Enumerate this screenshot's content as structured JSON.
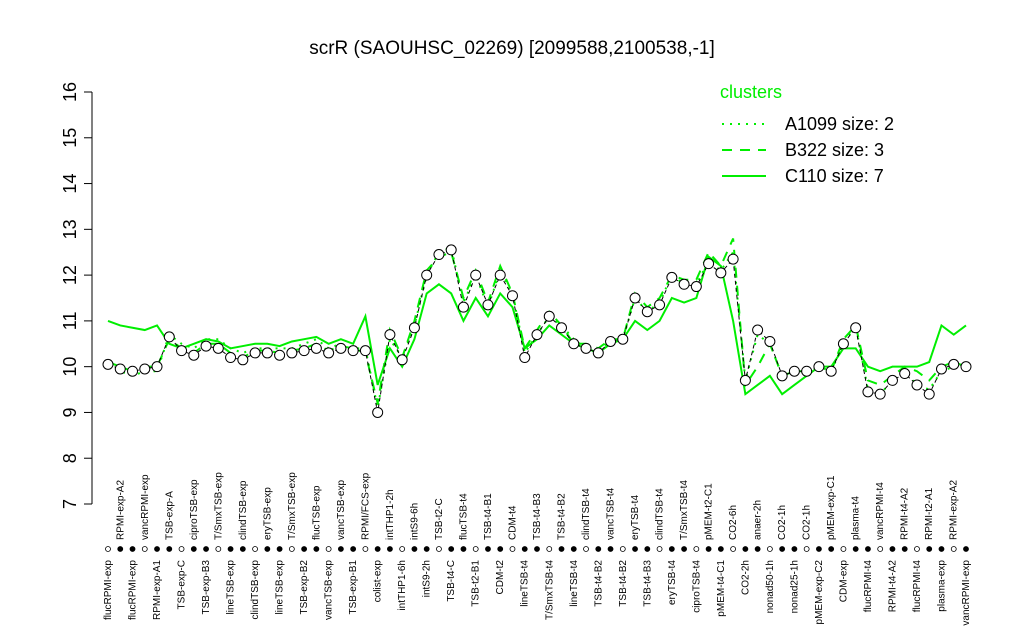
{
  "chart_data": {
    "type": "line",
    "title": "scrR (SAOUHSC_02269) [2099588,2100538,-1]",
    "categories": [
      "flucRPMI-exp",
      "RPMI-exp-A2",
      "flucRPMI-exp",
      "vancRPMI-exp",
      "RPMI-exp-A1",
      "TSB-exp-A",
      "TSB-exp-C",
      "ciproTSB-exp",
      "TSB-exp-B3",
      "T/SmxTSB-exp",
      "lineTSB-exp",
      "clindTSB-exp",
      "clindTSB-exp",
      "eryTSB-exp",
      "lineTSB-exp",
      "T/SmxTSB-exp",
      "TSB-exp-B2",
      "flucTSB-exp",
      "vancTSB-exp",
      "vancTSB-exp",
      "TSB-exp-B1",
      "RPMI/FCS-exp",
      "colist-exp",
      "intTHP1-2h",
      "intTHP1-6h",
      "intS9-6h",
      "intS9-2h",
      "TSB-t2-C",
      "TSB-t4-C",
      "flucTSB-t4",
      "TSB-t2-B1",
      "TSB-t4-B1",
      "CDM-t2",
      "CDM-t4",
      "lineTSB-t4",
      "TSB-t4-B3",
      "T/SmxTSB-t4",
      "TSB-t4-B2",
      "lineTSB-t4",
      "clindTSB-t4",
      "TSB-t4-B2",
      "vancTSB-t4",
      "TSB-t4-B2",
      "eryTSB-t4",
      "TSB-t4-B3",
      "clindTSB-t4",
      "eryTSB-t4",
      "T/SmxTSB-t4",
      "ciproTSB-t4",
      "pMEM-t2-C1",
      "pMEM-t4-C1",
      "CO2-6h",
      "CO2-2h",
      "anaer-2h",
      "nonad50-1h",
      "CO2-1h",
      "nonad25-1h",
      "CO2-1h",
      "pMEM-exp-C2",
      "pMEM-exp-C1",
      "CDM-exp",
      "plasma-t4",
      "flucRPMI-t4",
      "vancRPMI-t4",
      "RPMI-t4-A2",
      "RPMI-t4-A2",
      "flucRPMI-t4",
      "RPMI-t2-A1",
      "plasma-exp",
      "RPMI-exp-A2",
      "vancRPMI-exp"
    ],
    "values": [
      10.05,
      9.95,
      9.9,
      9.95,
      10.0,
      10.65,
      10.35,
      10.25,
      10.45,
      10.4,
      10.2,
      10.15,
      10.3,
      10.3,
      10.25,
      10.3,
      10.35,
      10.4,
      10.3,
      10.4,
      10.35,
      10.35,
      9.0,
      10.7,
      10.15,
      10.85,
      12.0,
      12.45,
      12.55,
      11.3,
      12.0,
      11.35,
      12.0,
      11.55,
      10.2,
      10.7,
      11.1,
      10.85,
      10.5,
      10.4,
      10.3,
      10.55,
      10.6,
      11.5,
      11.2,
      11.35,
      11.95,
      11.8,
      11.75,
      12.25,
      12.05,
      12.35,
      9.7,
      10.8,
      10.55,
      9.8,
      9.9,
      9.9,
      10.0,
      9.9,
      10.5,
      10.85,
      9.45,
      9.4,
      9.7,
      9.85,
      9.6,
      9.4,
      9.95,
      10.05,
      10.0
    ],
    "color": "#000000",
    "legend_title": "clusters",
    "series": [
      {
        "name": "A1099 size: 2",
        "color": "#00ee00",
        "dash": "dotted",
        "values": [
          10.0,
          9.9,
          9.8,
          9.9,
          9.9,
          10.7,
          10.5,
          10.4,
          10.6,
          10.6,
          10.4,
          10.3,
          10.4,
          10.4,
          10.4,
          10.4,
          10.5,
          10.6,
          10.4,
          10.5,
          10.4,
          10.4,
          9.1,
          10.6,
          10.2,
          10.9,
          12.0,
          12.5,
          12.6,
          11.4,
          12.0,
          11.3,
          12.1,
          11.6,
          10.3,
          10.7,
          11.1,
          10.9,
          10.6,
          10.4,
          10.3,
          10.6,
          10.6,
          11.5,
          11.2,
          11.4,
          12.0,
          11.8,
          11.8,
          12.3,
          12.1,
          12.5,
          9.7,
          10.7,
          10.5,
          9.8,
          9.9,
          9.9,
          10.0,
          9.9,
          10.5,
          10.9,
          9.5,
          9.4,
          9.7,
          9.9,
          9.6,
          9.5,
          9.9,
          10.0,
          10.0
        ]
      },
      {
        "name": "B322 size: 3",
        "color": "#00ee00",
        "dash": "dashed",
        "values": [
          10.1,
          10.0,
          9.9,
          10.0,
          10.0,
          10.6,
          10.4,
          10.3,
          10.5,
          10.5,
          10.3,
          10.2,
          10.35,
          10.35,
          10.3,
          10.35,
          10.4,
          10.5,
          10.35,
          10.45,
          10.4,
          10.3,
          9.2,
          10.8,
          10.2,
          11.0,
          12.1,
          12.4,
          12.5,
          11.5,
          12.1,
          11.4,
          12.2,
          11.6,
          10.4,
          10.8,
          11.2,
          10.9,
          10.5,
          10.5,
          10.4,
          10.6,
          10.6,
          11.6,
          11.3,
          11.5,
          12.0,
          11.9,
          11.9,
          12.5,
          12.2,
          12.8,
          9.6,
          10.0,
          10.5,
          9.8,
          9.9,
          9.9,
          10.0,
          9.9,
          10.6,
          10.9,
          9.7,
          9.6,
          9.8,
          10.0,
          9.9,
          9.7,
          10.0,
          10.1,
          10.0
        ]
      },
      {
        "name": "C110 size: 7",
        "color": "#00ee00",
        "dash": "solid",
        "values": [
          11.0,
          10.9,
          10.85,
          10.8,
          10.9,
          10.5,
          10.4,
          10.5,
          10.6,
          10.55,
          10.4,
          10.45,
          10.5,
          10.5,
          10.45,
          10.55,
          10.6,
          10.65,
          10.5,
          10.6,
          10.5,
          11.1,
          9.6,
          10.4,
          10.0,
          10.6,
          11.6,
          11.8,
          11.6,
          11.0,
          11.5,
          11.1,
          11.6,
          11.3,
          10.4,
          10.6,
          10.9,
          10.7,
          10.5,
          10.4,
          10.3,
          10.5,
          10.6,
          11.0,
          10.8,
          11.0,
          11.5,
          11.4,
          11.5,
          12.4,
          12.2,
          11.0,
          9.4,
          9.6,
          9.8,
          9.4,
          9.6,
          9.8,
          10.0,
          10.0,
          10.4,
          10.4,
          10.0,
          9.9,
          10.0,
          10.0,
          10.0,
          10.1,
          10.9,
          10.7,
          10.9
        ]
      }
    ],
    "ylim": [
      7,
      16
    ],
    "yticks": [
      7,
      8,
      9,
      10,
      11,
      12,
      13,
      14,
      15,
      16
    ]
  }
}
